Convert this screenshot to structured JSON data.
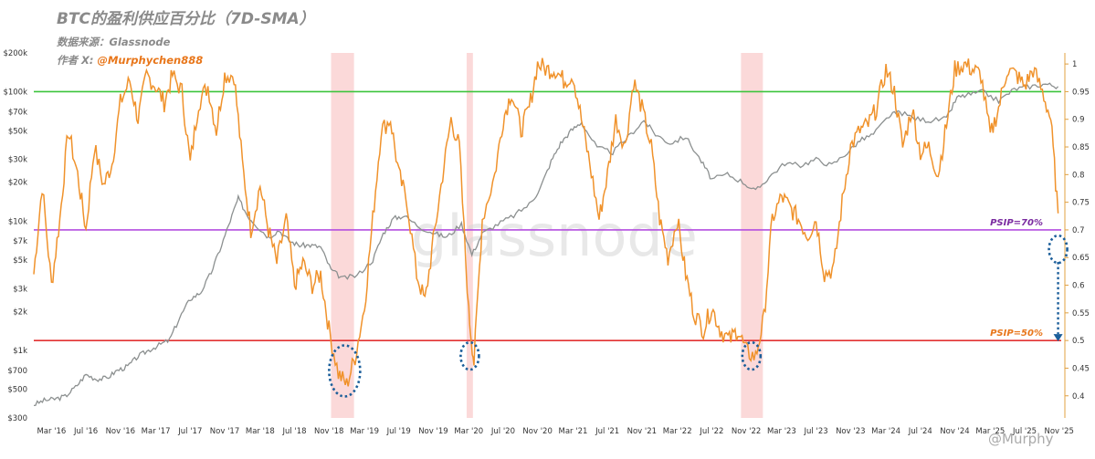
{
  "header": {
    "title": "BTC的盈利供应百分比（7D-SMA）",
    "source": "数据来源：Glassnode",
    "author_prefix": "作者 X: ",
    "author_handle": "@Murphychen888"
  },
  "watermark": {
    "center": "glassnode",
    "corner": "@Murphy"
  },
  "colors": {
    "psip": "#f0922b",
    "price": "#8c9090",
    "green": "#3cc43c",
    "purple": "#b44ee0",
    "red": "#e23232",
    "shade": "#fbd9d9",
    "circle": "#1b5e9a"
  },
  "chart_data": {
    "type": "line",
    "title": "BTC的盈利供应百分比（7D-SMA）",
    "x_tick_labels": [
      "Mar '16",
      "Jul '16",
      "Nov '16",
      "Mar '17",
      "Jul '17",
      "Nov '17",
      "Mar '18",
      "Jul '18",
      "Nov '18",
      "Mar '19",
      "Jul '19",
      "Nov '19",
      "Mar '20",
      "Jul '20",
      "Nov '20",
      "Mar '21",
      "Jul '21",
      "Nov '21",
      "Mar '22",
      "Jul '22",
      "Nov '22",
      "Mar '23",
      "Jul '23",
      "Nov '23",
      "Mar '24",
      "Jul '24",
      "Nov '24",
      "Mar '25",
      "Jul '25",
      "Nov '25"
    ],
    "x_tick_dates": [
      2016.17,
      2016.5,
      2016.83,
      2017.17,
      2017.5,
      2017.83,
      2018.17,
      2018.5,
      2018.83,
      2019.17,
      2019.5,
      2019.83,
      2020.17,
      2020.5,
      2020.83,
      2021.17,
      2021.5,
      2021.83,
      2022.17,
      2022.5,
      2022.83,
      2023.17,
      2023.5,
      2023.83,
      2024.17,
      2024.5,
      2024.83,
      2025.17,
      2025.5,
      2025.83
    ],
    "xlim": [
      2016.0,
      2025.85
    ],
    "y_left": {
      "label": "",
      "scale": "log",
      "range": [
        300,
        200000
      ],
      "ticks": [
        300,
        500,
        700,
        1000,
        2000,
        3000,
        5000,
        7000,
        10000,
        20000,
        30000,
        50000,
        70000,
        100000,
        200000
      ],
      "tick_labels": [
        "$300",
        "$500",
        "$700",
        "$1k",
        "$2k",
        "$3k",
        "$5k",
        "$7k",
        "$10k",
        "$20k",
        "$30k",
        "$50k",
        "$70k",
        "$100k",
        "$200k"
      ]
    },
    "y_right": {
      "label": "",
      "scale": "linear",
      "range": [
        0.36,
        1.02
      ],
      "ticks": [
        0.4,
        0.45,
        0.5,
        0.55,
        0.6,
        0.65,
        0.7,
        0.75,
        0.8,
        0.85,
        0.9,
        0.95,
        1
      ],
      "tick_labels": [
        "0.4",
        "0.45",
        "0.5",
        "0.55",
        "0.6",
        "0.65",
        "0.7",
        "0.75",
        "0.8",
        "0.85",
        "0.9",
        "0.95",
        "1"
      ]
    },
    "grid": false,
    "series": [
      {
        "name": "",
        "axis": "right",
        "x": [
          2016.0,
          2016.08,
          2016.17,
          2016.25,
          2016.33,
          2016.42,
          2016.5,
          2016.58,
          2016.67,
          2016.75,
          2016.83,
          2016.92,
          2017.0,
          2017.08,
          2017.17,
          2017.25,
          2017.33,
          2017.42,
          2017.5,
          2017.58,
          2017.67,
          2017.75,
          2017.83,
          2017.92,
          2018.0,
          2018.08,
          2018.17,
          2018.25,
          2018.33,
          2018.42,
          2018.5,
          2018.58,
          2018.67,
          2018.75,
          2018.83,
          2018.92,
          2019.0,
          2019.08,
          2019.17,
          2019.25,
          2019.33,
          2019.42,
          2019.5,
          2019.58,
          2019.67,
          2019.75,
          2019.83,
          2019.92,
          2020.0,
          2020.08,
          2020.17,
          2020.22,
          2020.3,
          2020.42,
          2020.5,
          2020.58,
          2020.67,
          2020.75,
          2020.83,
          2020.92,
          2021.0,
          2021.08,
          2021.17,
          2021.25,
          2021.33,
          2021.42,
          2021.5,
          2021.58,
          2021.67,
          2021.75,
          2021.83,
          2021.92,
          2022.0,
          2022.08,
          2022.17,
          2022.25,
          2022.33,
          2022.42,
          2022.5,
          2022.58,
          2022.67,
          2022.75,
          2022.83,
          2022.92,
          2023.0,
          2023.08,
          2023.17,
          2023.25,
          2023.33,
          2023.42,
          2023.5,
          2023.58,
          2023.67,
          2023.75,
          2023.83,
          2023.92,
          2024.0,
          2024.08,
          2024.17,
          2024.25,
          2024.33,
          2024.42,
          2024.5,
          2024.58,
          2024.67,
          2024.75,
          2024.83,
          2024.92,
          2025.0,
          2025.08,
          2025.17,
          2025.25,
          2025.33,
          2025.42,
          2025.5,
          2025.58,
          2025.67,
          2025.75,
          2025.82
        ],
        "y": [
          0.62,
          0.78,
          0.6,
          0.72,
          0.88,
          0.8,
          0.7,
          0.85,
          0.78,
          0.82,
          0.93,
          0.97,
          0.9,
          0.98,
          0.96,
          0.93,
          0.98,
          0.95,
          0.82,
          0.93,
          0.96,
          0.88,
          0.98,
          0.98,
          0.82,
          0.7,
          0.78,
          0.7,
          0.64,
          0.72,
          0.6,
          0.64,
          0.6,
          0.62,
          0.52,
          0.44,
          0.42,
          0.47,
          0.56,
          0.72,
          0.88,
          0.9,
          0.8,
          0.75,
          0.62,
          0.57,
          0.68,
          0.8,
          0.9,
          0.85,
          0.55,
          0.46,
          0.72,
          0.8,
          0.9,
          0.95,
          0.88,
          0.92,
          1.0,
          0.99,
          0.99,
          0.97,
          0.98,
          0.9,
          0.82,
          0.72,
          0.8,
          0.9,
          0.85,
          0.97,
          0.92,
          0.85,
          0.72,
          0.65,
          0.72,
          0.62,
          0.55,
          0.52,
          0.56,
          0.52,
          0.5,
          0.52,
          0.48,
          0.47,
          0.54,
          0.72,
          0.76,
          0.74,
          0.72,
          0.69,
          0.72,
          0.62,
          0.63,
          0.75,
          0.85,
          0.88,
          0.89,
          0.92,
          0.99,
          0.95,
          0.85,
          0.92,
          0.84,
          0.85,
          0.8,
          0.89,
          0.99,
          1.0,
          0.99,
          0.98,
          0.87,
          0.92,
          0.99,
          0.98,
          0.96,
          0.99,
          0.95,
          0.9,
          0.73
        ]
      },
      {
        "name": "",
        "axis": "left",
        "x": [
          2016.0,
          2016.1,
          2016.2,
          2016.3,
          2016.4,
          2016.5,
          2016.6,
          2016.7,
          2016.8,
          2016.9,
          2017.0,
          2017.1,
          2017.2,
          2017.3,
          2017.4,
          2017.5,
          2017.6,
          2017.7,
          2017.8,
          2017.9,
          2017.96,
          2018.05,
          2018.15,
          2018.25,
          2018.35,
          2018.45,
          2018.55,
          2018.65,
          2018.75,
          2018.85,
          2018.96,
          2019.1,
          2019.25,
          2019.35,
          2019.45,
          2019.55,
          2019.7,
          2019.85,
          2019.96,
          2020.1,
          2020.2,
          2020.3,
          2020.45,
          2020.6,
          2020.75,
          2020.85,
          2020.96,
          2021.05,
          2021.15,
          2021.25,
          2021.4,
          2021.55,
          2021.7,
          2021.85,
          2021.96,
          2022.1,
          2022.25,
          2022.4,
          2022.5,
          2022.65,
          2022.8,
          2022.92,
          2023.05,
          2023.2,
          2023.35,
          2023.5,
          2023.65,
          2023.8,
          2023.92,
          2024.05,
          2024.2,
          2024.3,
          2024.45,
          2024.6,
          2024.75,
          2024.85,
          2024.96,
          2025.1,
          2025.25,
          2025.4,
          2025.55,
          2025.7,
          2025.82
        ],
        "y": [
          380,
          410,
          420,
          440,
          520,
          650,
          600,
          610,
          700,
          750,
          900,
          1000,
          1100,
          1200,
          1800,
          2500,
          2800,
          4000,
          6500,
          11000,
          15000,
          11000,
          9000,
          7500,
          8500,
          7000,
          6500,
          6500,
          6300,
          4200,
          3600,
          3800,
          5000,
          8000,
          10500,
          11000,
          9000,
          8000,
          7500,
          9500,
          5500,
          8000,
          9500,
          11000,
          13500,
          17500,
          29000,
          40000,
          50000,
          58000,
          37000,
          34000,
          45000,
          60000,
          47000,
          40000,
          45000,
          29000,
          21000,
          23000,
          20000,
          17000,
          22000,
          28000,
          27000,
          30000,
          27000,
          34000,
          42000,
          47000,
          65000,
          70000,
          62000,
          60000,
          62000,
          90000,
          95000,
          100000,
          85000,
          105000,
          110000,
          115000,
          110000
        ]
      }
    ],
    "reference_lines": [
      {
        "axis": "right",
        "value": 0.95,
        "label": ""
      },
      {
        "axis": "right",
        "value": 0.7,
        "label": "PSIP=70%"
      },
      {
        "axis": "right",
        "value": 0.5,
        "label": "PSIP=50%"
      }
    ],
    "highlight_bands": [
      {
        "from": 2018.85,
        "to": 2019.07
      },
      {
        "from": 2020.15,
        "to": 2020.21
      },
      {
        "from": 2022.78,
        "to": 2022.99
      }
    ],
    "annotations": [
      {
        "type": "ellipse",
        "x": 2018.98,
        "y": 0.445
      },
      {
        "type": "ellipse",
        "x": 2020.18,
        "y": 0.472
      },
      {
        "type": "ellipse",
        "x": 2022.88,
        "y": 0.472
      },
      {
        "type": "ellipse",
        "x": 2025.82,
        "y": 0.665
      },
      {
        "type": "arrow",
        "x": 2025.82,
        "from": 0.665,
        "to": 0.5
      }
    ]
  }
}
